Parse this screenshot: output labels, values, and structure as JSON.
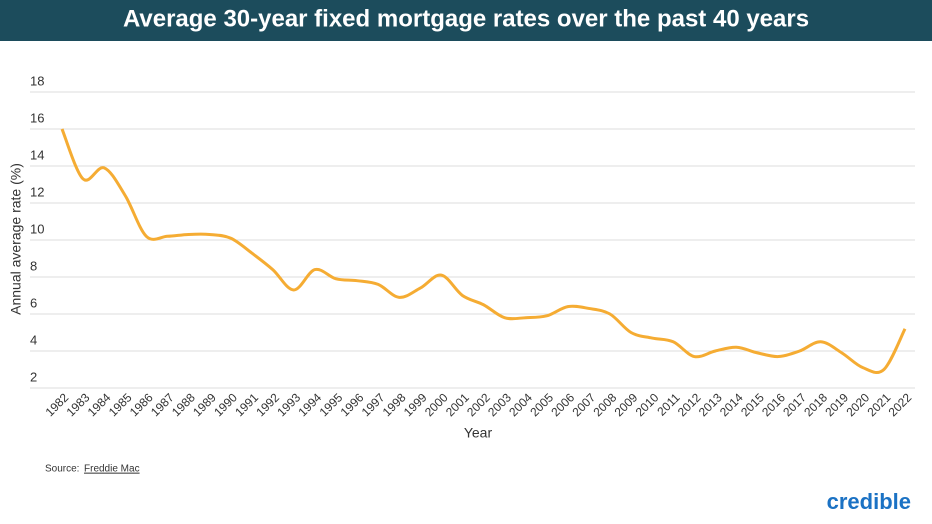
{
  "chart_data": {
    "type": "line",
    "title": "Average 30-year fixed mortgage rates over the past 40 years",
    "x_label": "Year",
    "y_label": "Annual average rate (%)",
    "categories": [
      "1982",
      "1983",
      "1984",
      "1985",
      "1986",
      "1987",
      "1988",
      "1989",
      "1990",
      "1991",
      "1992",
      "1993",
      "1994",
      "1995",
      "1996",
      "1997",
      "1998",
      "1999",
      "2000",
      "2001",
      "2002",
      "2003",
      "2004",
      "2005",
      "2006",
      "2007",
      "2008",
      "2009",
      "2010",
      "2011",
      "2012",
      "2013",
      "2014",
      "2015",
      "2016",
      "2017",
      "2018",
      "2019",
      "2020",
      "2021",
      "2022"
    ],
    "values": [
      16.0,
      13.3,
      13.9,
      12.4,
      10.2,
      10.2,
      10.3,
      10.3,
      10.1,
      9.3,
      8.4,
      7.3,
      8.4,
      7.9,
      7.8,
      7.6,
      6.9,
      7.4,
      8.1,
      7.0,
      6.5,
      5.8,
      5.8,
      5.9,
      6.4,
      6.3,
      6.0,
      5.0,
      4.7,
      4.5,
      3.7,
      4.0,
      4.2,
      3.9,
      3.7,
      4.0,
      4.5,
      3.9,
      3.1,
      3.0,
      5.2
    ],
    "color": "#f5ac33",
    "ylim": [
      2,
      18
    ],
    "yticks": [
      2,
      4,
      6,
      8,
      10,
      12,
      14,
      16,
      18
    ],
    "grid": true
  },
  "footer": {
    "source_label": "Source:",
    "source_link": "Freddie Mac",
    "brand": "credible"
  }
}
